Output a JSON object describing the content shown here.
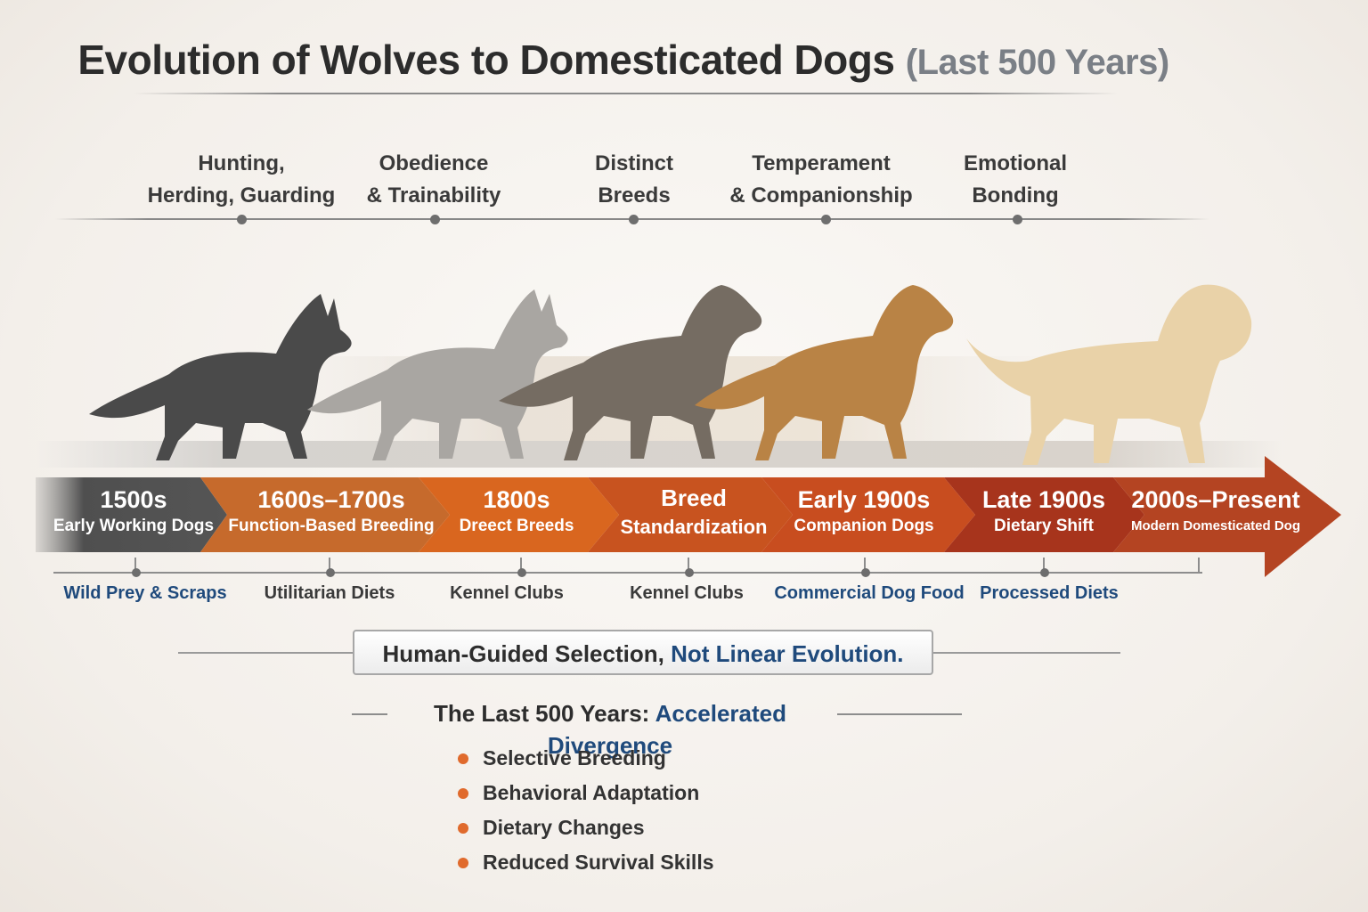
{
  "header": {
    "title": "Evolution of Wolves to Domesticated Dogs",
    "subtitle": "(Last 500 Years)"
  },
  "traits": [
    {
      "label": "Hunting,\nHerding, Guarding"
    },
    {
      "label": "Obedience\n& Trainability"
    },
    {
      "label": "Distinct\nBreeds"
    },
    {
      "label": "Temperament\n& Companionship"
    },
    {
      "label": "Emotional\nBonding"
    }
  ],
  "eras": [
    {
      "year": "1500s",
      "label": "Early Working Dogs",
      "color": "#555555"
    },
    {
      "year": "1600s–1700s",
      "label": "Function-Based Breeding",
      "color": "#c56a2a"
    },
    {
      "year": "1800s",
      "label": "Dreect Breeds",
      "color": "#d9651e"
    },
    {
      "year": "Breed",
      "label": "Standardization",
      "color": "#c9541e"
    },
    {
      "year": "Early 1900s",
      "label": "Companion Dogs",
      "color": "#c94e1e"
    },
    {
      "year": "Late 1900s",
      "label": "Dietary Shift",
      "color": "#a8351c"
    },
    {
      "year": "2000s–Present",
      "label": "Modern Domesticated Dog",
      "color": "#b54422"
    }
  ],
  "diets": [
    {
      "label": "Wild Prey & Scraps",
      "highlight": true
    },
    {
      "label": "Utilitarian Diets",
      "highlight": false
    },
    {
      "label": "Kennel Clubs",
      "highlight": false
    },
    {
      "label": "Kennel Clubs",
      "highlight": false
    },
    {
      "label": "Commercial Dog Food",
      "highlight": true
    },
    {
      "label": "Processed Diets",
      "highlight": true
    }
  ],
  "callout": {
    "text_dark": "Human-Guided Selection,",
    "text_blue": "Not Linear Evolution."
  },
  "section": {
    "title_dark": "The Last 500 Years:",
    "title_blue": "Accelerated Divergence",
    "bullets": [
      "Selective Breeding",
      "Behavioral Adaptation",
      "Dietary Changes",
      "Reduced Survival Skills"
    ]
  },
  "colors": {
    "accent_blue": "#1f4a7c",
    "bullet_orange": "#e06a2c"
  }
}
